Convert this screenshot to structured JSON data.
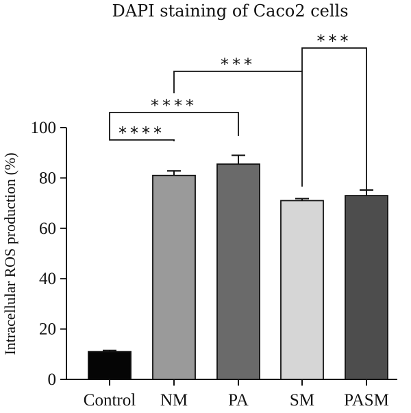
{
  "chart_data": {
    "type": "bar",
    "title": "DAPI staining of Caco2 cells",
    "ylabel": "Intracellular ROS production (%)",
    "xlabel": "",
    "ylim": [
      0,
      100
    ],
    "yticks": [
      0,
      20,
      40,
      60,
      80,
      100
    ],
    "grid": false,
    "categories": [
      "Control",
      "NM",
      "PA",
      "SM",
      "PASM"
    ],
    "values": [
      11,
      81,
      85.5,
      71,
      73
    ],
    "errors": [
      0.5,
      1.8,
      3.5,
      0.8,
      2.2
    ],
    "colors": [
      "#050505",
      "#9a9a9a",
      "#6a6a6a",
      "#d6d6d6",
      "#4d4d4d"
    ],
    "significance": [
      {
        "from": "Control",
        "to": "NM",
        "label": "****"
      },
      {
        "from": "Control",
        "to": "PA",
        "label": "****"
      },
      {
        "from": "NM",
        "to": "SM",
        "label": "***"
      },
      {
        "from": "SM",
        "to": "PASM",
        "label": "***"
      }
    ]
  }
}
